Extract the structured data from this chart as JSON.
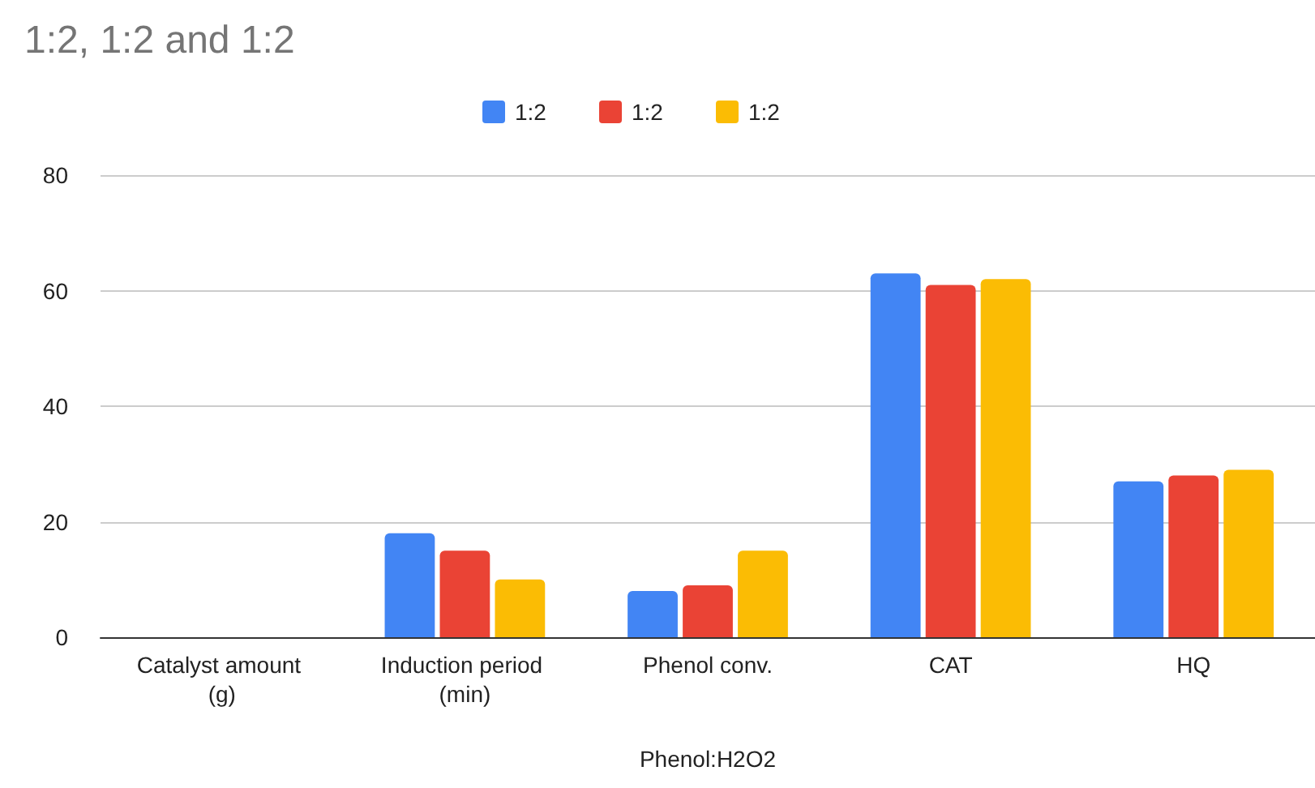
{
  "chart_data": {
    "type": "bar",
    "title": "1:2, 1:2 and 1:2",
    "xlabel": "Phenol:H2O2",
    "categories": [
      "Catalyst amount (g)",
      "Induction period (min)",
      "Phenol conv.",
      "CAT",
      "HQ"
    ],
    "series": [
      {
        "name": "1:2",
        "color": "#4285f4",
        "values": [
          null,
          18,
          8,
          63,
          27
        ]
      },
      {
        "name": "1:2",
        "color": "#ea4335",
        "values": [
          null,
          15,
          9,
          61,
          28
        ]
      },
      {
        "name": "1:2",
        "color": "#fbbc04",
        "values": [
          null,
          10,
          15,
          62,
          29
        ]
      }
    ],
    "ylim": [
      0,
      80
    ],
    "yticks": [
      0,
      20,
      40,
      60,
      80
    ],
    "grid": "y",
    "legend": "top"
  }
}
